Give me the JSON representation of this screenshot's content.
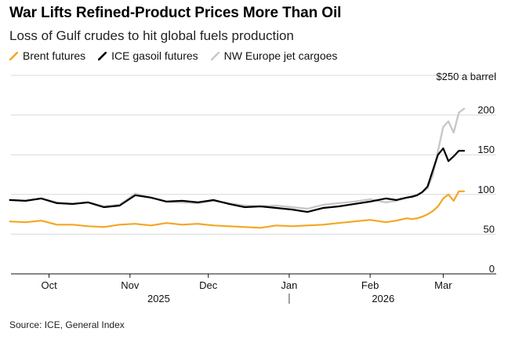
{
  "header": {
    "title": "War Lifts Refined-Product Prices More Than Oil",
    "subtitle": "Loss of Gulf crudes to hit global fuels production"
  },
  "footer": {
    "source": "Source: ICE, General Index"
  },
  "chart_data": {
    "type": "line",
    "title": "War Lifts Refined-Product Prices More Than Oil",
    "subtitle": "Loss of Gulf crudes to hit global fuels production",
    "unit_label": "$250 a barrel",
    "ylim": [
      0,
      250
    ],
    "yticks": [
      0,
      50,
      100,
      150,
      200
    ],
    "ytick_labels": [
      "0",
      "50",
      "100",
      "150",
      "200"
    ],
    "grid": true,
    "legend_position": "top-left",
    "x_range": [
      0,
      176
    ],
    "x_unit": "days since 2025-09-14",
    "month_ticks": [
      {
        "label": "Oct",
        "day": 17
      },
      {
        "label": "Nov",
        "day": 48
      },
      {
        "label": "Dec",
        "day": 78
      },
      {
        "label": "Jan",
        "day": 109
      },
      {
        "label": "Feb",
        "day": 140
      },
      {
        "label": "Mar",
        "day": 168
      }
    ],
    "year_labels": [
      {
        "label": "2025",
        "day": 59
      },
      {
        "label": "2026",
        "day": 145
      }
    ],
    "year_divider_day": 109,
    "colors": {
      "brent": "#f5a623",
      "gasoil": "#000000",
      "jet": "#c8c8c8"
    },
    "series": [
      {
        "key": "jet",
        "name": "NW Europe jet cargoes",
        "color": "#c8c8c8",
        "x": [
          2,
          8,
          14,
          20,
          26,
          32,
          38,
          44,
          50,
          56,
          62,
          68,
          74,
          80,
          86,
          92,
          98,
          104,
          110,
          116,
          122,
          128,
          134,
          140,
          146,
          150,
          154,
          156,
          158,
          160,
          162,
          164,
          166,
          168,
          170,
          172,
          174,
          176
        ],
        "values": [
          93,
          92,
          95,
          90,
          88,
          90,
          85,
          87,
          101,
          96,
          91,
          90,
          89,
          92,
          89,
          86,
          85,
          86,
          84,
          82,
          87,
          89,
          91,
          94,
          90,
          92,
          96,
          98,
          100,
          103,
          108,
          124,
          155,
          185,
          192,
          178,
          203,
          208
        ]
      },
      {
        "key": "gasoil",
        "name": "ICE gasoil futures",
        "color": "#000000",
        "x": [
          2,
          8,
          14,
          20,
          26,
          32,
          38,
          44,
          50,
          56,
          62,
          68,
          74,
          80,
          86,
          92,
          98,
          104,
          110,
          116,
          122,
          128,
          134,
          140,
          146,
          150,
          154,
          156,
          158,
          160,
          162,
          164,
          166,
          168,
          170,
          172,
          174,
          176
        ],
        "values": [
          93,
          92,
          95,
          89,
          88,
          90,
          84,
          86,
          99,
          96,
          91,
          92,
          90,
          93,
          88,
          84,
          85,
          83,
          81,
          78,
          83,
          85,
          88,
          91,
          95,
          93,
          96,
          97,
          99,
          103,
          110,
          130,
          150,
          158,
          142,
          148,
          155,
          155
        ]
      },
      {
        "key": "brent",
        "name": "Brent futures",
        "color": "#f5a623",
        "x": [
          2,
          8,
          14,
          20,
          26,
          32,
          38,
          44,
          50,
          56,
          62,
          68,
          74,
          80,
          86,
          92,
          98,
          104,
          110,
          116,
          122,
          128,
          134,
          140,
          146,
          150,
          154,
          156,
          158,
          160,
          162,
          164,
          166,
          168,
          170,
          172,
          174,
          176
        ],
        "values": [
          66,
          65,
          67,
          62,
          62,
          60,
          59,
          62,
          63,
          61,
          64,
          62,
          63,
          61,
          60,
          59,
          58,
          61,
          60,
          61,
          62,
          64,
          66,
          68,
          65,
          67,
          70,
          69,
          70,
          72,
          75,
          79,
          85,
          95,
          100,
          92,
          104,
          104
        ]
      }
    ]
  }
}
